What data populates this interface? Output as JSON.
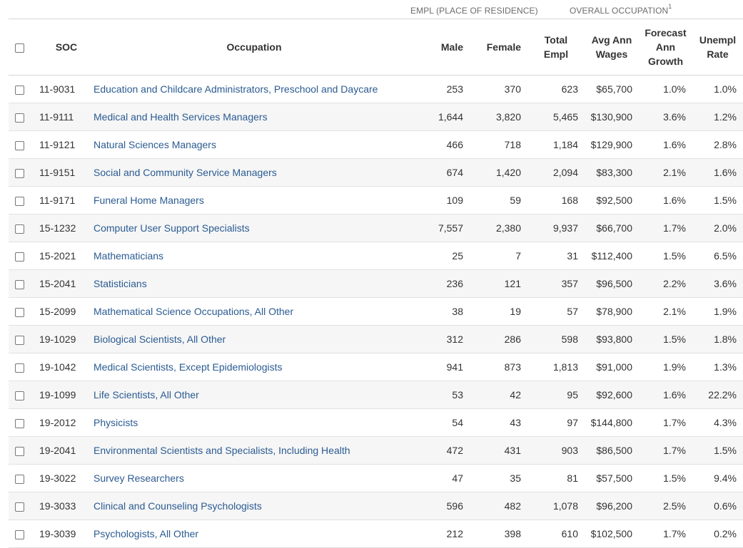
{
  "group_headers": {
    "empl": "EMPL (PLACE OF RESIDENCE)",
    "overall": "OVERALL OCCUPATION",
    "overall_footnote": "1"
  },
  "columns": {
    "soc": "SOC",
    "occupation": "Occupation",
    "male": "Male",
    "female": "Female",
    "total_empl_1": "Total",
    "total_empl_2": "Empl",
    "wages_1": "Avg Ann",
    "wages_2": "Wages",
    "growth_1": "Forecast",
    "growth_2": "Ann",
    "growth_3": "Growth",
    "unempl_1": "Unempl",
    "unempl_2": "Rate"
  },
  "rows": [
    {
      "soc": "11-9031",
      "occupation": "Education and Childcare Administrators, Preschool and Daycare",
      "male": "253",
      "female": "370",
      "total": "623",
      "wages": "$65,700",
      "growth": "1.0%",
      "unempl": "1.0%"
    },
    {
      "soc": "11-9111",
      "occupation": "Medical and Health Services Managers",
      "male": "1,644",
      "female": "3,820",
      "total": "5,465",
      "wages": "$130,900",
      "growth": "3.6%",
      "unempl": "1.2%"
    },
    {
      "soc": "11-9121",
      "occupation": "Natural Sciences Managers",
      "male": "466",
      "female": "718",
      "total": "1,184",
      "wages": "$129,900",
      "growth": "1.6%",
      "unempl": "2.8%"
    },
    {
      "soc": "11-9151",
      "occupation": "Social and Community Service Managers",
      "male": "674",
      "female": "1,420",
      "total": "2,094",
      "wages": "$83,300",
      "growth": "2.1%",
      "unempl": "1.6%"
    },
    {
      "soc": "11-9171",
      "occupation": "Funeral Home Managers",
      "male": "109",
      "female": "59",
      "total": "168",
      "wages": "$92,500",
      "growth": "1.6%",
      "unempl": "1.5%"
    },
    {
      "soc": "15-1232",
      "occupation": "Computer User Support Specialists",
      "male": "7,557",
      "female": "2,380",
      "total": "9,937",
      "wages": "$66,700",
      "growth": "1.7%",
      "unempl": "2.0%"
    },
    {
      "soc": "15-2021",
      "occupation": "Mathematicians",
      "male": "25",
      "female": "7",
      "total": "31",
      "wages": "$112,400",
      "growth": "1.5%",
      "unempl": "6.5%"
    },
    {
      "soc": "15-2041",
      "occupation": "Statisticians",
      "male": "236",
      "female": "121",
      "total": "357",
      "wages": "$96,500",
      "growth": "2.2%",
      "unempl": "3.6%"
    },
    {
      "soc": "15-2099",
      "occupation": "Mathematical Science Occupations, All Other",
      "male": "38",
      "female": "19",
      "total": "57",
      "wages": "$78,900",
      "growth": "2.1%",
      "unempl": "1.9%"
    },
    {
      "soc": "19-1029",
      "occupation": "Biological Scientists, All Other",
      "male": "312",
      "female": "286",
      "total": "598",
      "wages": "$93,800",
      "growth": "1.5%",
      "unempl": "1.8%"
    },
    {
      "soc": "19-1042",
      "occupation": "Medical Scientists, Except Epidemiologists",
      "male": "941",
      "female": "873",
      "total": "1,813",
      "wages": "$91,000",
      "growth": "1.9%",
      "unempl": "1.3%"
    },
    {
      "soc": "19-1099",
      "occupation": "Life Scientists, All Other",
      "male": "53",
      "female": "42",
      "total": "95",
      "wages": "$92,600",
      "growth": "1.6%",
      "unempl": "22.2%"
    },
    {
      "soc": "19-2012",
      "occupation": "Physicists",
      "male": "54",
      "female": "43",
      "total": "97",
      "wages": "$144,800",
      "growth": "1.7%",
      "unempl": "4.3%"
    },
    {
      "soc": "19-2041",
      "occupation": "Environmental Scientists and Specialists, Including Health",
      "male": "472",
      "female": "431",
      "total": "903",
      "wages": "$86,500",
      "growth": "1.7%",
      "unempl": "1.5%"
    },
    {
      "soc": "19-3022",
      "occupation": "Survey Researchers",
      "male": "47",
      "female": "35",
      "total": "81",
      "wages": "$57,500",
      "growth": "1.5%",
      "unempl": "9.4%"
    },
    {
      "soc": "19-3033",
      "occupation": "Clinical and Counseling Psychologists",
      "male": "596",
      "female": "482",
      "total": "1,078",
      "wages": "$96,200",
      "growth": "2.5%",
      "unempl": "0.6%"
    },
    {
      "soc": "19-3039",
      "occupation": "Psychologists, All Other",
      "male": "212",
      "female": "398",
      "total": "610",
      "wages": "$102,500",
      "growth": "1.7%",
      "unempl": "0.2%"
    }
  ],
  "colors": {
    "link": "#2b5b92",
    "row_alt": "#f6f6f6",
    "border": "#e2e2e2"
  }
}
